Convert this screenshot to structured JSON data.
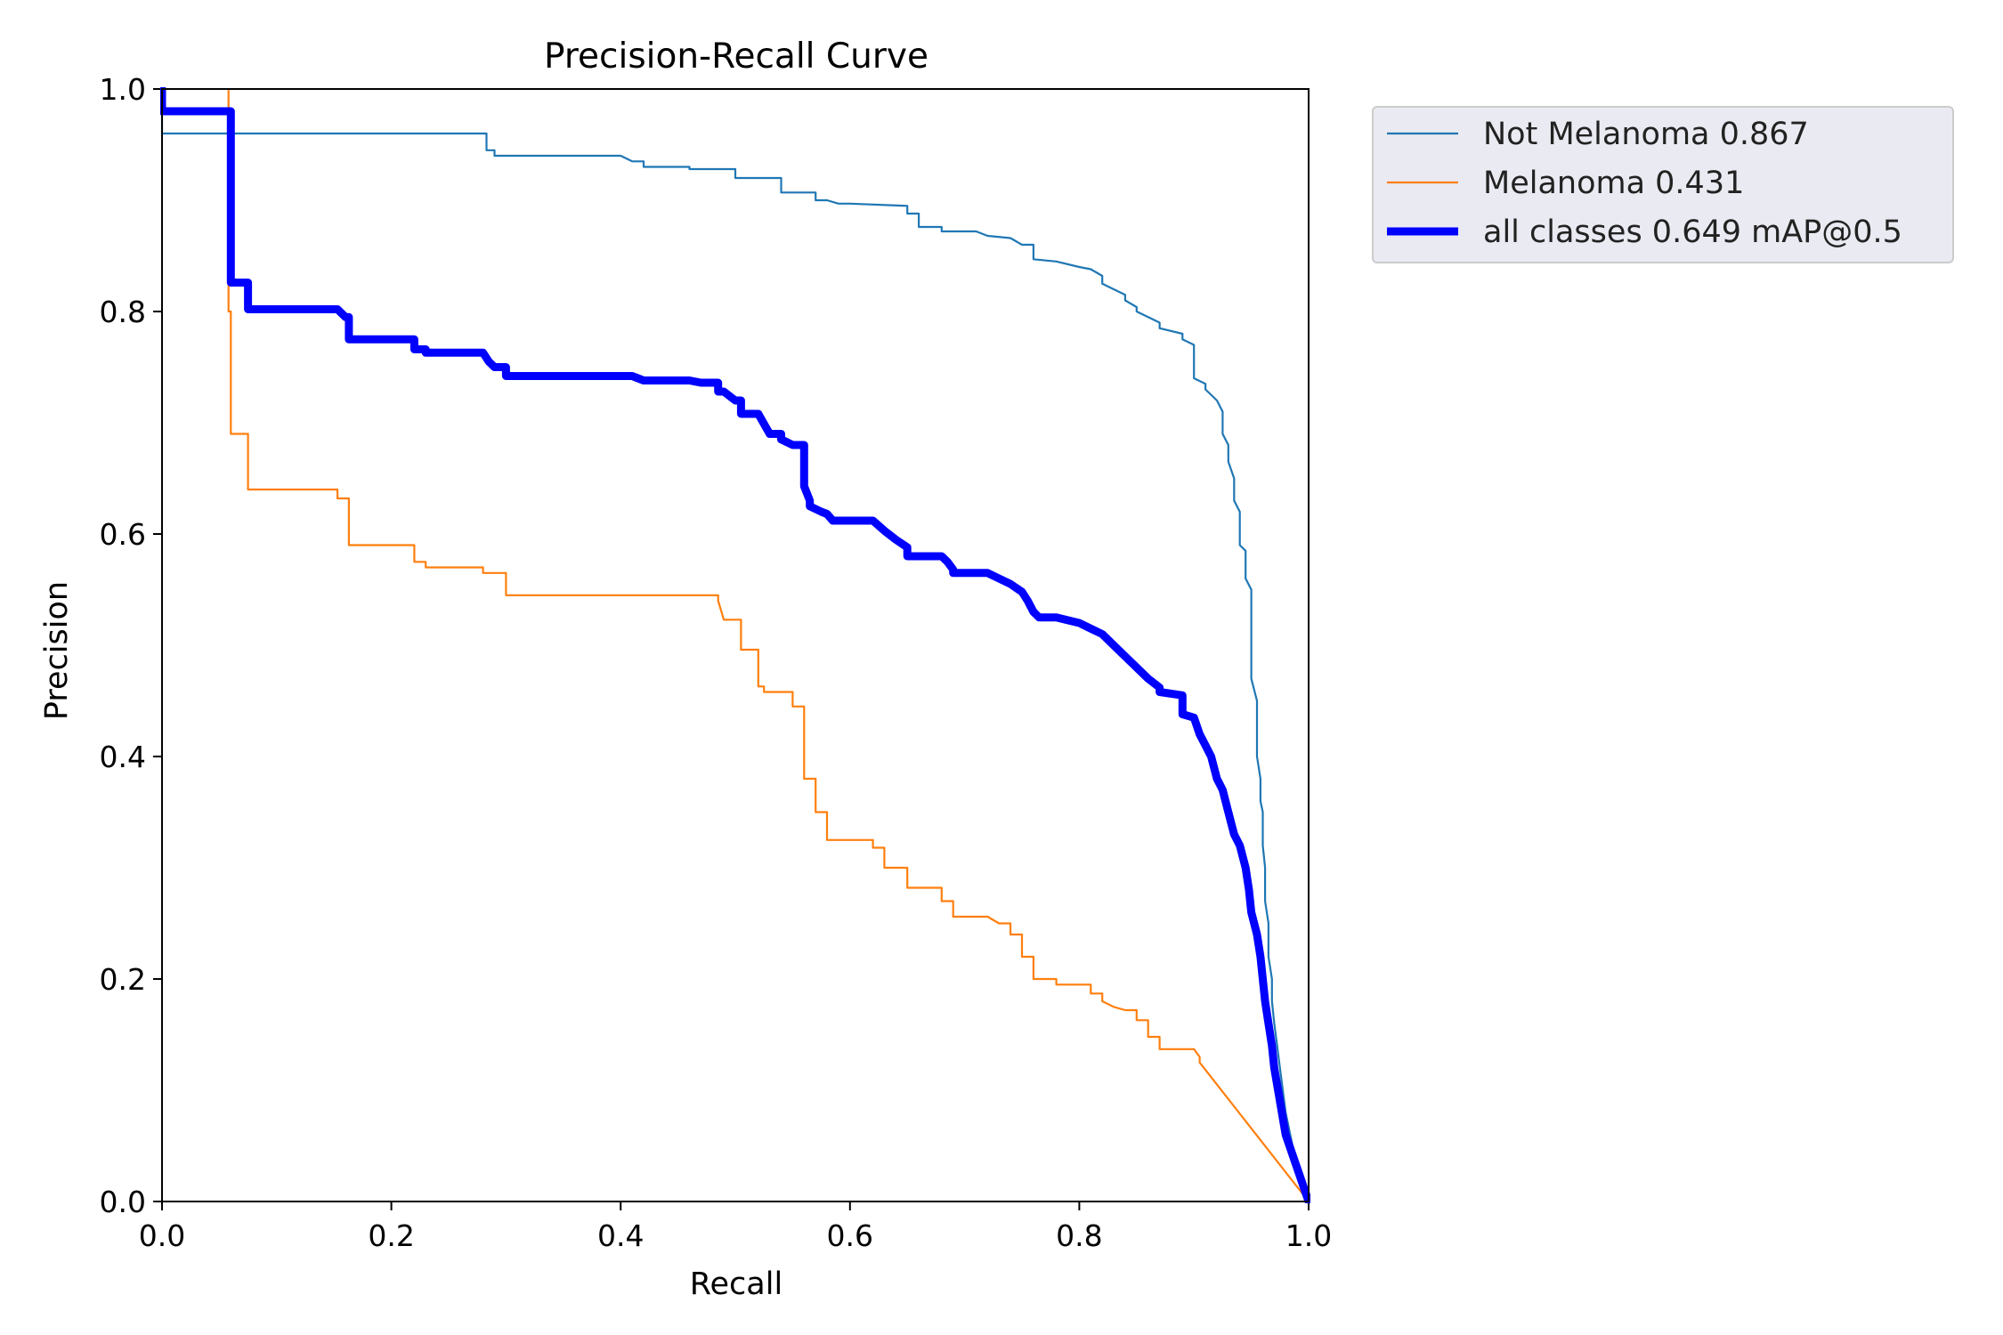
{
  "chart_data": {
    "type": "line",
    "title": "Precision-Recall Curve",
    "xlabel": "Recall",
    "ylabel": "Precision",
    "xlim": [
      0,
      1
    ],
    "ylim": [
      0,
      1
    ],
    "xticks": [
      "0.0",
      "0.2",
      "0.4",
      "0.6",
      "0.8",
      "1.0"
    ],
    "yticks": [
      "0.0",
      "0.2",
      "0.4",
      "0.6",
      "0.8",
      "1.0"
    ],
    "grid": false,
    "legend_position": "outside-top-right",
    "series": [
      {
        "name": "Not Melanoma 0.867",
        "color": "#1f77b4",
        "emphasis": false,
        "x": [
          0,
          0,
          0.003,
          0.003,
          0.28,
          0.283,
          0.283,
          0.29,
          0.29,
          0.4,
          0.41,
          0.42,
          0.42,
          0.46,
          0.46,
          0.5,
          0.5,
          0.52,
          0.54,
          0.54,
          0.57,
          0.57,
          0.58,
          0.59,
          0.6,
          0.65,
          0.65,
          0.66,
          0.66,
          0.68,
          0.68,
          0.71,
          0.72,
          0.74,
          0.75,
          0.76,
          0.76,
          0.78,
          0.8,
          0.81,
          0.82,
          0.82,
          0.83,
          0.84,
          0.84,
          0.85,
          0.85,
          0.86,
          0.87,
          0.87,
          0.89,
          0.89,
          0.9,
          0.9,
          0.91,
          0.91,
          0.92,
          0.925,
          0.925,
          0.93,
          0.93,
          0.935,
          0.935,
          0.94,
          0.94,
          0.945,
          0.945,
          0.95,
          0.95,
          0.955,
          0.955,
          0.958,
          0.958,
          0.96,
          0.96,
          0.962,
          0.962,
          0.965,
          0.965,
          0.968,
          0.968,
          0.97,
          0.975,
          0.98,
          0.99,
          1.0
        ],
        "y": [
          1.0,
          0.96,
          0.96,
          0.96,
          0.96,
          0.96,
          0.945,
          0.945,
          0.94,
          0.94,
          0.935,
          0.935,
          0.93,
          0.93,
          0.928,
          0.928,
          0.92,
          0.92,
          0.92,
          0.907,
          0.907,
          0.9,
          0.9,
          0.897,
          0.897,
          0.895,
          0.888,
          0.888,
          0.876,
          0.876,
          0.872,
          0.872,
          0.868,
          0.866,
          0.86,
          0.86,
          0.847,
          0.845,
          0.84,
          0.838,
          0.832,
          0.825,
          0.82,
          0.815,
          0.81,
          0.804,
          0.8,
          0.795,
          0.79,
          0.785,
          0.78,
          0.775,
          0.77,
          0.74,
          0.735,
          0.73,
          0.72,
          0.71,
          0.69,
          0.68,
          0.665,
          0.65,
          0.63,
          0.62,
          0.59,
          0.585,
          0.56,
          0.55,
          0.47,
          0.45,
          0.4,
          0.38,
          0.36,
          0.35,
          0.32,
          0.3,
          0.27,
          0.25,
          0.22,
          0.2,
          0.18,
          0.16,
          0.12,
          0.08,
          0.03,
          0.0
        ]
      },
      {
        "name": "Melanoma 0.431",
        "color": "#ff7f0e",
        "emphasis": false,
        "x": [
          0.058,
          0.058,
          0.06,
          0.06,
          0.075,
          0.075,
          0.153,
          0.153,
          0.163,
          0.163,
          0.22,
          0.22,
          0.23,
          0.23,
          0.28,
          0.28,
          0.3,
          0.3,
          0.485,
          0.485,
          0.49,
          0.5,
          0.505,
          0.505,
          0.52,
          0.52,
          0.525,
          0.525,
          0.55,
          0.55,
          0.56,
          0.56,
          0.57,
          0.57,
          0.58,
          0.58,
          0.62,
          0.62,
          0.63,
          0.63,
          0.65,
          0.65,
          0.68,
          0.68,
          0.69,
          0.69,
          0.72,
          0.73,
          0.74,
          0.74,
          0.75,
          0.75,
          0.76,
          0.76,
          0.78,
          0.78,
          0.81,
          0.81,
          0.82,
          0.82,
          0.83,
          0.84,
          0.85,
          0.85,
          0.86,
          0.86,
          0.87,
          0.87,
          0.9,
          0.905,
          0.905,
          1.0
        ],
        "y": [
          1.0,
          0.8,
          0.8,
          0.69,
          0.69,
          0.64,
          0.64,
          0.632,
          0.632,
          0.59,
          0.59,
          0.575,
          0.575,
          0.57,
          0.57,
          0.565,
          0.565,
          0.545,
          0.545,
          0.54,
          0.523,
          0.523,
          0.523,
          0.496,
          0.496,
          0.463,
          0.463,
          0.458,
          0.458,
          0.445,
          0.445,
          0.38,
          0.38,
          0.35,
          0.35,
          0.325,
          0.325,
          0.318,
          0.318,
          0.3,
          0.3,
          0.282,
          0.282,
          0.27,
          0.27,
          0.256,
          0.256,
          0.25,
          0.25,
          0.24,
          0.24,
          0.22,
          0.22,
          0.2,
          0.2,
          0.195,
          0.195,
          0.187,
          0.187,
          0.18,
          0.175,
          0.172,
          0.172,
          0.163,
          0.163,
          0.148,
          0.148,
          0.137,
          0.137,
          0.13,
          0.125,
          0.0
        ]
      },
      {
        "name": "all classes 0.649 mAP@0.5",
        "color": "#0000ff",
        "emphasis": true,
        "x": [
          0,
          0,
          0.003,
          0.003,
          0.06,
          0.06,
          0.075,
          0.075,
          0.153,
          0.16,
          0.163,
          0.163,
          0.22,
          0.22,
          0.23,
          0.23,
          0.28,
          0.285,
          0.29,
          0.3,
          0.3,
          0.41,
          0.42,
          0.42,
          0.46,
          0.47,
          0.485,
          0.485,
          0.49,
          0.5,
          0.505,
          0.505,
          0.52,
          0.53,
          0.54,
          0.54,
          0.55,
          0.56,
          0.56,
          0.565,
          0.565,
          0.575,
          0.58,
          0.585,
          0.59,
          0.62,
          0.63,
          0.64,
          0.65,
          0.65,
          0.68,
          0.685,
          0.69,
          0.69,
          0.72,
          0.73,
          0.74,
          0.75,
          0.755,
          0.76,
          0.765,
          0.78,
          0.8,
          0.81,
          0.82,
          0.83,
          0.84,
          0.85,
          0.86,
          0.87,
          0.87,
          0.89,
          0.89,
          0.9,
          0.905,
          0.91,
          0.915,
          0.92,
          0.925,
          0.93,
          0.935,
          0.94,
          0.945,
          0.948,
          0.95,
          0.955,
          0.958,
          0.96,
          0.962,
          0.965,
          0.968,
          0.97,
          0.975,
          0.98,
          0.99,
          1.0
        ],
        "y": [
          1.0,
          0.98,
          0.98,
          0.98,
          0.98,
          0.826,
          0.826,
          0.802,
          0.802,
          0.795,
          0.795,
          0.775,
          0.775,
          0.766,
          0.766,
          0.763,
          0.763,
          0.755,
          0.75,
          0.75,
          0.742,
          0.742,
          0.738,
          0.738,
          0.738,
          0.736,
          0.736,
          0.728,
          0.728,
          0.72,
          0.72,
          0.708,
          0.708,
          0.69,
          0.69,
          0.685,
          0.68,
          0.68,
          0.643,
          0.63,
          0.625,
          0.62,
          0.618,
          0.612,
          0.612,
          0.612,
          0.603,
          0.595,
          0.588,
          0.58,
          0.58,
          0.575,
          0.568,
          0.565,
          0.565,
          0.56,
          0.555,
          0.548,
          0.54,
          0.53,
          0.525,
          0.525,
          0.52,
          0.515,
          0.51,
          0.5,
          0.49,
          0.48,
          0.47,
          0.462,
          0.458,
          0.455,
          0.438,
          0.435,
          0.42,
          0.41,
          0.4,
          0.38,
          0.37,
          0.35,
          0.33,
          0.32,
          0.3,
          0.28,
          0.26,
          0.24,
          0.22,
          0.2,
          0.18,
          0.16,
          0.14,
          0.12,
          0.09,
          0.06,
          0.03,
          0.0
        ]
      }
    ]
  }
}
